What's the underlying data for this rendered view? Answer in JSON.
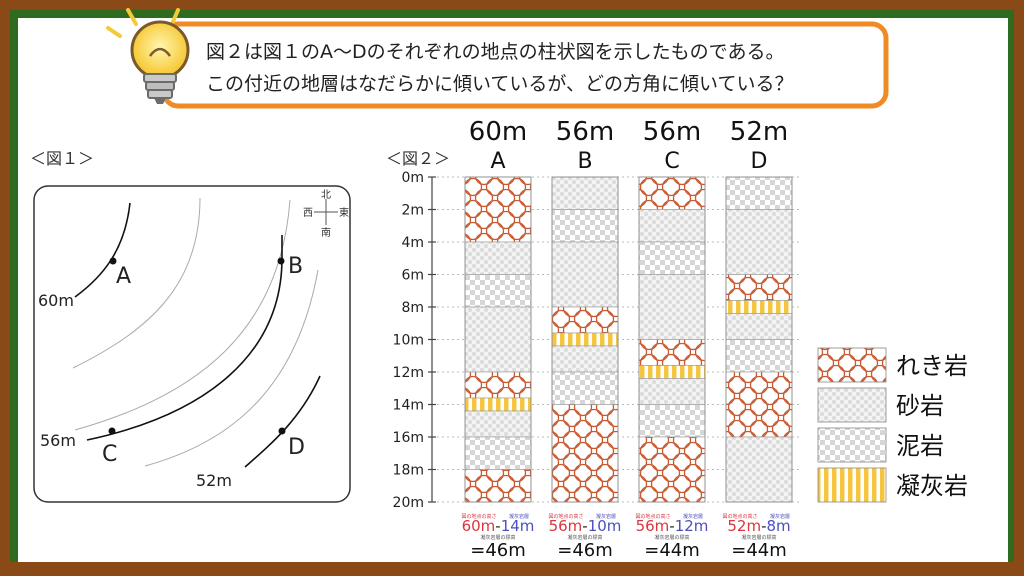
{
  "question": {
    "line1": "図２は図１のA〜Dのそれぞれの地点の柱状図を示したものである。",
    "line2": "この付近の地層はなだらかに傾いているが、どの方角に傾いている？"
  },
  "fig1": {
    "label": "＜図１＞",
    "compass": {
      "n": "北",
      "w": "西",
      "e": "東",
      "s": "南"
    },
    "contours": [
      {
        "label": "60m"
      },
      {
        "label": "56m"
      },
      {
        "label": "52m"
      }
    ],
    "points": [
      {
        "label": "A"
      },
      {
        "label": "B"
      },
      {
        "label": "C"
      },
      {
        "label": "D"
      }
    ]
  },
  "fig2": {
    "label": "＜図２＞",
    "depth_labels": [
      "0m",
      "2m",
      "4m",
      "6m",
      "8m",
      "10m",
      "12m",
      "14m",
      "16m",
      "18m",
      "20m"
    ],
    "columns": [
      {
        "id": "A",
        "elevation": "60m",
        "layers": [
          {
            "from": 0,
            "to": 4,
            "rock": "gravel"
          },
          {
            "from": 4,
            "to": 6,
            "rock": "sand"
          },
          {
            "from": 6,
            "to": 8,
            "rock": "mud"
          },
          {
            "from": 8,
            "to": 12,
            "rock": "sand"
          },
          {
            "from": 12,
            "to": 13.6,
            "rock": "gravel"
          },
          {
            "from": 13.6,
            "to": 14.4,
            "rock": "tuff"
          },
          {
            "from": 14.4,
            "to": 16,
            "rock": "sand"
          },
          {
            "from": 16,
            "to": 18,
            "rock": "mud"
          },
          {
            "from": 18,
            "to": 20,
            "rock": "gravel"
          }
        ],
        "calc": {
          "note_left": "図の地点の高さ",
          "note_right": "凝灰岩層",
          "minuend": "60m",
          "subtrahend": "14m",
          "note_bottom": "凝灰岩層の標高",
          "result": "=46m"
        }
      },
      {
        "id": "B",
        "elevation": "56m",
        "layers": [
          {
            "from": 0,
            "to": 2,
            "rock": "sand"
          },
          {
            "from": 2,
            "to": 4,
            "rock": "mud"
          },
          {
            "from": 4,
            "to": 8,
            "rock": "sand"
          },
          {
            "from": 8,
            "to": 9.6,
            "rock": "gravel"
          },
          {
            "from": 9.6,
            "to": 10.4,
            "rock": "tuff"
          },
          {
            "from": 10.4,
            "to": 12,
            "rock": "sand"
          },
          {
            "from": 12,
            "to": 14,
            "rock": "mud"
          },
          {
            "from": 14,
            "to": 20,
            "rock": "gravel"
          }
        ],
        "calc": {
          "note_left": "図の地点の高さ",
          "note_right": "凝灰岩層",
          "minuend": "56m",
          "subtrahend": "10m",
          "note_bottom": "凝灰岩層の標高",
          "result": "=46m"
        }
      },
      {
        "id": "C",
        "elevation": "56m",
        "layers": [
          {
            "from": 0,
            "to": 2,
            "rock": "gravel"
          },
          {
            "from": 2,
            "to": 4,
            "rock": "sand"
          },
          {
            "from": 4,
            "to": 6,
            "rock": "mud"
          },
          {
            "from": 6,
            "to": 10,
            "rock": "sand"
          },
          {
            "from": 10,
            "to": 11.6,
            "rock": "gravel"
          },
          {
            "from": 11.6,
            "to": 12.4,
            "rock": "tuff"
          },
          {
            "from": 12.4,
            "to": 14,
            "rock": "sand"
          },
          {
            "from": 14,
            "to": 16,
            "rock": "mud"
          },
          {
            "from": 16,
            "to": 20,
            "rock": "gravel"
          }
        ],
        "calc": {
          "note_left": "図の地点の高さ",
          "note_right": "凝灰岩層",
          "minuend": "56m",
          "subtrahend": "12m",
          "note_bottom": "凝灰岩層の標高",
          "result": "=44m"
        }
      },
      {
        "id": "D",
        "elevation": "52m",
        "layers": [
          {
            "from": 0,
            "to": 2,
            "rock": "mud"
          },
          {
            "from": 2,
            "to": 6,
            "rock": "sand"
          },
          {
            "from": 6,
            "to": 7.6,
            "rock": "gravel"
          },
          {
            "from": 7.6,
            "to": 8.4,
            "rock": "tuff"
          },
          {
            "from": 8.4,
            "to": 10,
            "rock": "sand"
          },
          {
            "from": 10,
            "to": 12,
            "rock": "mud"
          },
          {
            "from": 12,
            "to": 16,
            "rock": "gravel"
          },
          {
            "from": 16,
            "to": 20,
            "rock": "sand"
          }
        ],
        "calc": {
          "note_left": "図の地点の高さ",
          "note_right": "凝灰岩層",
          "minuend": "52m",
          "subtrahend": "8m",
          "note_bottom": "凝灰岩層の標高",
          "result": "=44m"
        }
      }
    ]
  },
  "legend": [
    {
      "rock": "gravel",
      "label": "れき岩"
    },
    {
      "rock": "sand",
      "label": "砂岩"
    },
    {
      "rock": "mud",
      "label": "泥岩"
    },
    {
      "rock": "tuff",
      "label": "凝灰岩"
    }
  ],
  "colors": {
    "board_frame": "#8a4a18",
    "board_green": "#2f6b1f",
    "bubble_border": "#f08a24",
    "gravel": "#c85a32",
    "tuff": "#f5c542",
    "red_text": "#d9363e",
    "blue_text": "#4b4fbf"
  }
}
